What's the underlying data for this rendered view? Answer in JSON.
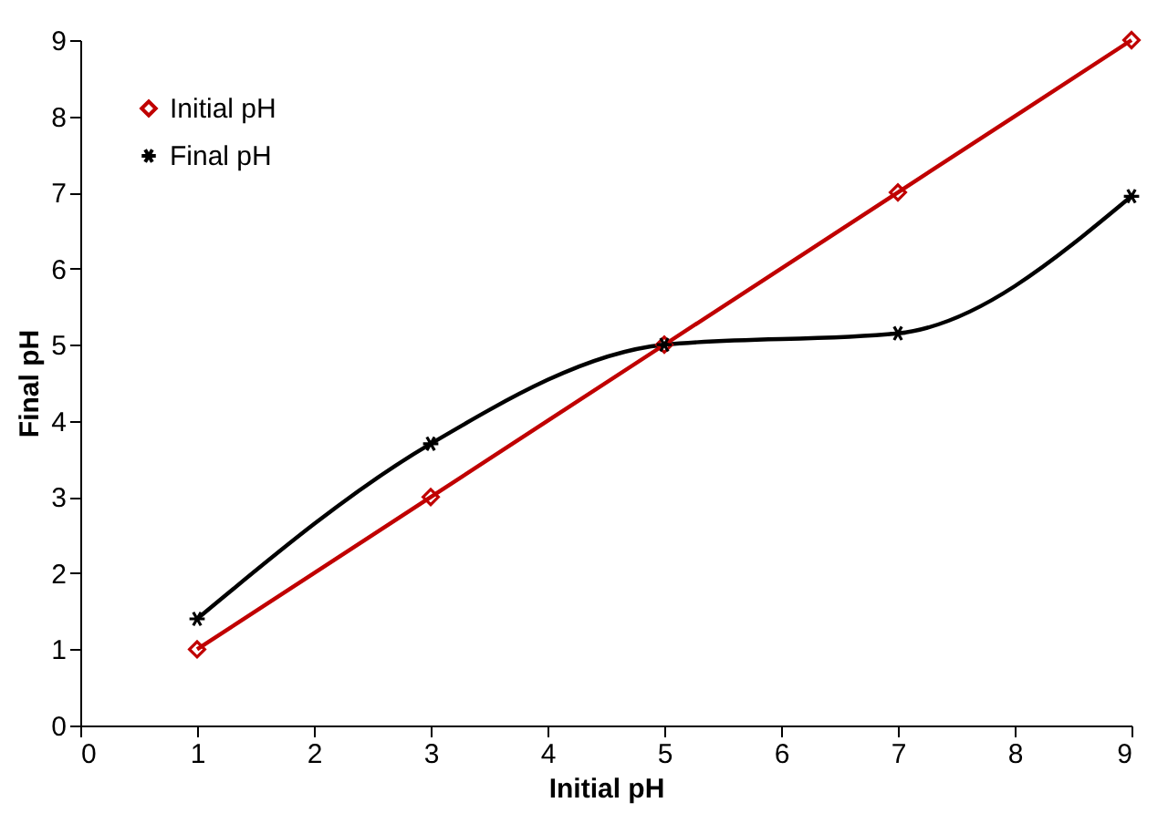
{
  "chart_data": {
    "type": "line",
    "xlabel": "Initial pH",
    "ylabel": "Final pH",
    "x": [
      1,
      3,
      5,
      7,
      9
    ],
    "series": [
      {
        "name": "Initial pH",
        "color": "#c00000",
        "marker": "diamond",
        "values": [
          1,
          3,
          5,
          7,
          9
        ]
      },
      {
        "name": "Final pH",
        "color": "#000000",
        "marker": "cross",
        "values": [
          1.4,
          3.7,
          5.0,
          5.15,
          6.95
        ]
      }
    ],
    "xlim": [
      0,
      9
    ],
    "xticks": [
      0,
      1,
      2,
      3,
      4,
      5,
      6,
      7,
      8,
      9
    ],
    "ylim": [
      0,
      9
    ],
    "yticks": [
      0,
      1,
      2,
      3,
      4,
      5,
      6,
      7,
      8,
      9
    ],
    "grid": false,
    "legend": "top left",
    "line_style": "solid"
  }
}
